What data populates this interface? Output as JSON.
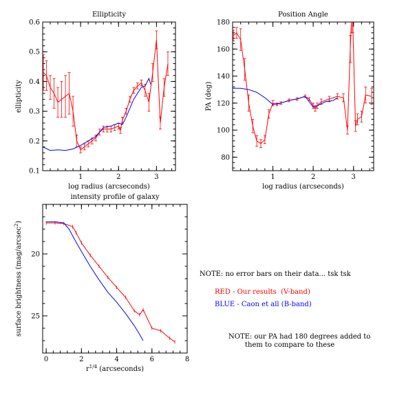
{
  "chart_data": [
    {
      "type": "line",
      "title": "Ellipticity",
      "xlabel": "log radius (arcseconds)",
      "ylabel": "ellipticity",
      "xlim": [
        0,
        3.5
      ],
      "ylim": [
        0.1,
        0.6
      ],
      "xticks": [
        1,
        2,
        3
      ],
      "yticks": [
        0.1,
        0.2,
        0.3,
        0.4,
        0.5,
        0.6
      ],
      "grid": false,
      "series": [
        {
          "color": "#ff0000",
          "errorbars": true,
          "x": [
            0.02,
            0.1,
            0.2,
            0.3,
            0.4,
            0.5,
            0.6,
            0.7,
            0.8,
            0.9,
            1.0,
            1.1,
            1.2,
            1.3,
            1.4,
            1.5,
            1.6,
            1.7,
            1.8,
            1.9,
            2.0,
            2.05,
            2.1,
            2.2,
            2.3,
            2.4,
            2.5,
            2.6,
            2.7,
            2.8,
            2.9,
            3.0,
            3.1,
            3.2,
            3.3
          ],
          "y": [
            0.43,
            0.42,
            0.38,
            0.36,
            0.33,
            0.34,
            0.35,
            0.36,
            0.3,
            0.2,
            0.17,
            0.18,
            0.19,
            0.2,
            0.21,
            0.23,
            0.24,
            0.24,
            0.24,
            0.245,
            0.25,
            0.235,
            0.27,
            0.3,
            0.34,
            0.37,
            0.385,
            0.395,
            0.37,
            0.33,
            0.43,
            0.54,
            0.26,
            0.38,
            0.46
          ],
          "err": [
            0.06,
            0.05,
            0.04,
            0.05,
            0.05,
            0.06,
            0.07,
            0.07,
            0.05,
            0.02,
            0.01,
            0.01,
            0.01,
            0.01,
            0.01,
            0.01,
            0.01,
            0.01,
            0.01,
            0.01,
            0.01,
            0.01,
            0.01,
            0.01,
            0.01,
            0.01,
            0.01,
            0.01,
            0.02,
            0.03,
            0.03,
            0.03,
            0.02,
            0.03,
            0.04
          ]
        },
        {
          "color": "#0000ff",
          "errorbars": false,
          "x": [
            0.0,
            0.2,
            0.4,
            0.6,
            0.8,
            1.0,
            1.2,
            1.4,
            1.6,
            1.8,
            2.0,
            2.1,
            2.2,
            2.4,
            2.6,
            2.7,
            2.8,
            2.85
          ],
          "y": [
            0.18,
            0.168,
            0.17,
            0.168,
            0.173,
            0.185,
            0.2,
            0.215,
            0.245,
            0.25,
            0.26,
            0.255,
            0.28,
            0.34,
            0.38,
            0.385,
            0.41,
            0.39
          ]
        }
      ]
    },
    {
      "type": "line",
      "title": "Position Angle",
      "xlabel": "log radius (arcseconds)",
      "ylabel": "PA (deg)",
      "xlim": [
        0,
        3.5
      ],
      "ylim": [
        70,
        180
      ],
      "xticks": [
        1,
        2,
        3
      ],
      "yticks": [
        80,
        100,
        120,
        140,
        160,
        180
      ],
      "grid": false,
      "series": [
        {
          "color": "#ff0000",
          "errorbars": true,
          "x": [
            0.02,
            0.1,
            0.2,
            0.3,
            0.4,
            0.5,
            0.6,
            0.7,
            0.8,
            0.9,
            1.0,
            1.1,
            1.2,
            1.4,
            1.6,
            1.8,
            1.9,
            2.0,
            2.05,
            2.1,
            2.2,
            2.4,
            2.6,
            2.75,
            2.85,
            2.92,
            2.95,
            2.98,
            3.05,
            3.1,
            3.2,
            3.3,
            3.45
          ],
          "y": [
            170,
            172,
            167,
            145,
            120,
            103,
            92,
            90,
            93,
            112,
            120,
            119,
            120,
            122,
            123,
            125,
            123,
            118,
            116,
            118,
            121,
            123,
            125,
            124,
            100,
            160,
            182,
            182,
            103,
            108,
            110,
            126,
            125
          ],
          "err": [
            4,
            4,
            8,
            8,
            6,
            5,
            4,
            3,
            3,
            3,
            2,
            1,
            1,
            1,
            1,
            1,
            1,
            2,
            2,
            2,
            2,
            2,
            2,
            3,
            3,
            10,
            10,
            10,
            4,
            4,
            4,
            6,
            6
          ]
        },
        {
          "color": "#0000ff",
          "errorbars": false,
          "x": [
            0.0,
            0.2,
            0.4,
            0.6,
            0.8,
            1.0,
            1.2,
            1.4,
            1.6,
            1.8,
            2.0,
            2.1,
            2.3,
            2.5,
            2.6
          ],
          "y": [
            131,
            131,
            130,
            128,
            124,
            119,
            120,
            122,
            123,
            125,
            117,
            118,
            121,
            122,
            124
          ]
        }
      ]
    },
    {
      "type": "line",
      "title": "intensity profile of galaxy",
      "xlabel": "r",
      "xlabel_sup": "1/4",
      "xlabel_unit": "(arcseconds)",
      "ylabel": "surface brightness (mag/arcsec",
      "ylabel_sup": "2",
      "ylabel_end": ")",
      "xlim": [
        -0.2,
        8
      ],
      "ylim": [
        28,
        16
      ],
      "xticks": [
        0,
        2,
        4,
        6,
        8
      ],
      "yticks": [
        20,
        25
      ],
      "grid": false,
      "series": [
        {
          "color": "#ff0000",
          "errorbars": true,
          "x": [
            0.0,
            0.5,
            1.0,
            1.5,
            1.7,
            2.0,
            2.5,
            3.0,
            3.5,
            4.0,
            4.5,
            5.0,
            5.3,
            5.5,
            6.0,
            6.5,
            7.0,
            7.3
          ],
          "y": [
            17.5,
            17.5,
            17.55,
            17.8,
            18.3,
            19.1,
            20.1,
            21.0,
            21.9,
            22.7,
            23.5,
            24.6,
            24.9,
            24.5,
            26.0,
            26.2,
            26.8,
            27.1
          ]
        },
        {
          "color": "#0000ff",
          "errorbars": false,
          "x": [
            0.0,
            0.5,
            1.0,
            1.3,
            1.6,
            2.0,
            2.5,
            3.0,
            3.5,
            4.0,
            4.5,
            5.0,
            5.3,
            5.5
          ],
          "y": [
            17.4,
            17.4,
            17.5,
            18.0,
            18.8,
            19.8,
            21.0,
            22.1,
            23.1,
            23.9,
            24.8,
            25.8,
            26.5,
            27.0
          ]
        }
      ]
    }
  ],
  "notes": {
    "note1": "NOTE: no error bars on their data... tsk tsk",
    "red_label": "RED - Our results  (V-band)",
    "blue_label": "BLUE - Caon et all (B-band)",
    "note2_line1": "NOTE: our PA had 180 degrees added to",
    "note2_line2": "them to compare to these"
  },
  "colors": {
    "red": "#ff0000",
    "blue": "#0000ff"
  }
}
